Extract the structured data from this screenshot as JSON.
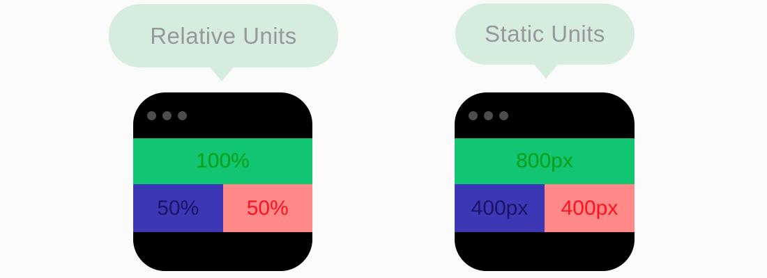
{
  "panels": [
    {
      "bubble_label": "Relative Units",
      "window": {
        "full_bar": {
          "label": "100%"
        },
        "left_bar": {
          "label": "50%"
        },
        "right_bar": {
          "label": "50%"
        }
      }
    },
    {
      "bubble_label": "Static Units",
      "window": {
        "full_bar": {
          "label": "800px"
        },
        "left_bar": {
          "label": "400px"
        },
        "right_bar": {
          "label": "400px"
        }
      }
    }
  ],
  "colors": {
    "page_background": "#fafbfa",
    "bubble_background": "#d5ecdf",
    "bubble_text": "#97989d",
    "window_background": "#000000",
    "titlebar_dot": "#4d4d4d",
    "full_bar_background": "#11c573",
    "full_bar_text": "#0a9e14",
    "left_bar_background": "#3b37b5",
    "left_bar_text": "#1b1464",
    "right_bar_background": "#ff8888",
    "right_bar_text": "#fa1420"
  }
}
